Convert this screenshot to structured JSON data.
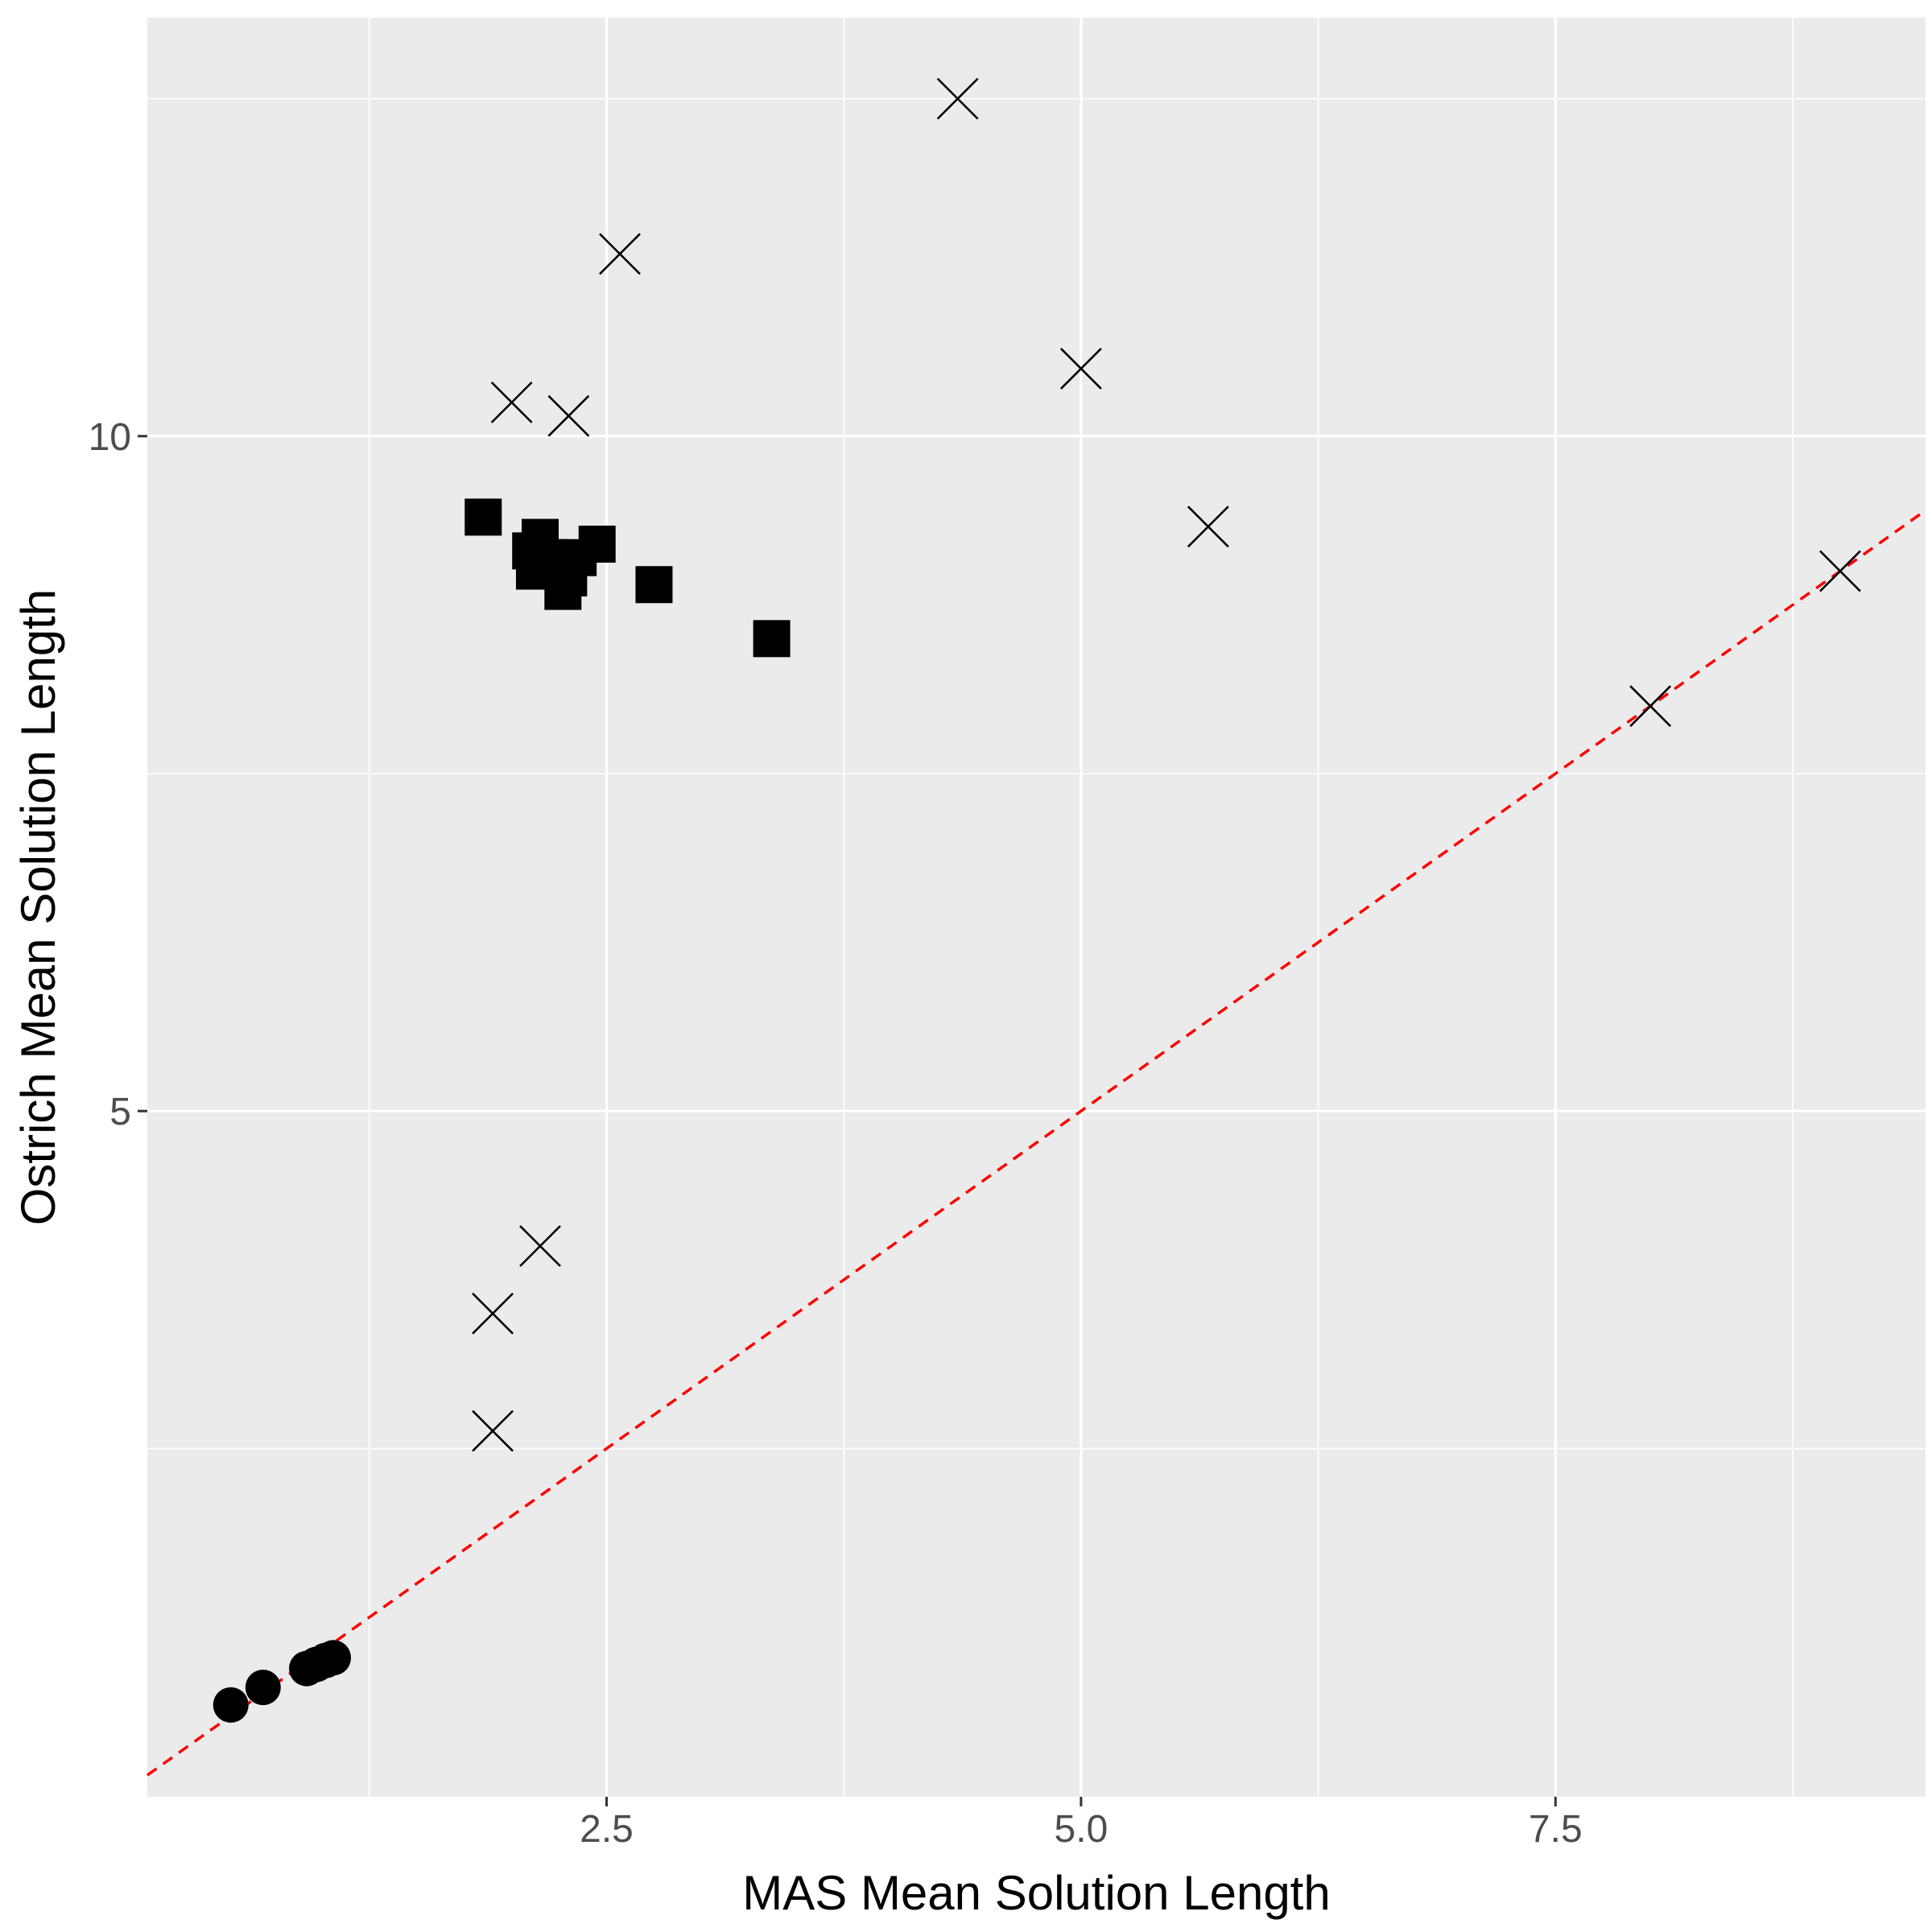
{
  "chart_data": {
    "type": "scatter",
    "xlabel": "MAS Mean Solution Length",
    "ylabel": "Ostrich Mean Solution Length",
    "x_ticks": [
      {
        "value": 2.5,
        "label": "2.5"
      },
      {
        "value": 5.0,
        "label": "5.0"
      },
      {
        "value": 7.5,
        "label": "7.5"
      }
    ],
    "y_ticks": [
      {
        "value": 5,
        "label": "5"
      },
      {
        "value": 10,
        "label": "10"
      }
    ],
    "xlim": [
      0.08,
      9.45
    ],
    "ylim": [
      -0.08,
      13.1
    ],
    "grid": true,
    "panel_background": "#ebebeb",
    "grid_color": "#ffffff",
    "reference_line": {
      "slope": 1,
      "intercept": 0,
      "style": "dashed",
      "color": "#ff0000"
    },
    "series": [
      {
        "marker": "cross",
        "color": "#000000",
        "points": [
          {
            "x": 4.35,
            "y": 12.5
          },
          {
            "x": 2.57,
            "y": 11.35
          },
          {
            "x": 5.0,
            "y": 10.5
          },
          {
            "x": 2.0,
            "y": 10.25
          },
          {
            "x": 2.3,
            "y": 10.15
          },
          {
            "x": 5.67,
            "y": 9.33
          },
          {
            "x": 9.0,
            "y": 9.0
          },
          {
            "x": 8.0,
            "y": 8.0
          },
          {
            "x": 2.15,
            "y": 4.0
          },
          {
            "x": 1.9,
            "y": 3.5
          },
          {
            "x": 1.9,
            "y": 2.63
          }
        ]
      },
      {
        "marker": "square",
        "color": "#000000",
        "points": [
          {
            "x": 1.85,
            "y": 9.4
          },
          {
            "x": 2.15,
            "y": 9.25
          },
          {
            "x": 2.1,
            "y": 9.15
          },
          {
            "x": 2.2,
            "y": 9.1
          },
          {
            "x": 2.25,
            "y": 9.05
          },
          {
            "x": 2.45,
            "y": 9.2
          },
          {
            "x": 2.35,
            "y": 9.1
          },
          {
            "x": 2.12,
            "y": 9.0
          },
          {
            "x": 2.3,
            "y": 8.95
          },
          {
            "x": 2.27,
            "y": 8.85
          },
          {
            "x": 2.75,
            "y": 8.9
          },
          {
            "x": 3.37,
            "y": 8.5
          }
        ]
      },
      {
        "marker": "circle",
        "color": "#000000",
        "points": [
          {
            "x": 0.52,
            "y": 0.6
          },
          {
            "x": 0.69,
            "y": 0.73
          },
          {
            "x": 0.92,
            "y": 0.87
          },
          {
            "x": 0.97,
            "y": 0.9
          },
          {
            "x": 1.02,
            "y": 0.93
          },
          {
            "x": 1.06,
            "y": 0.95
          }
        ]
      }
    ]
  }
}
